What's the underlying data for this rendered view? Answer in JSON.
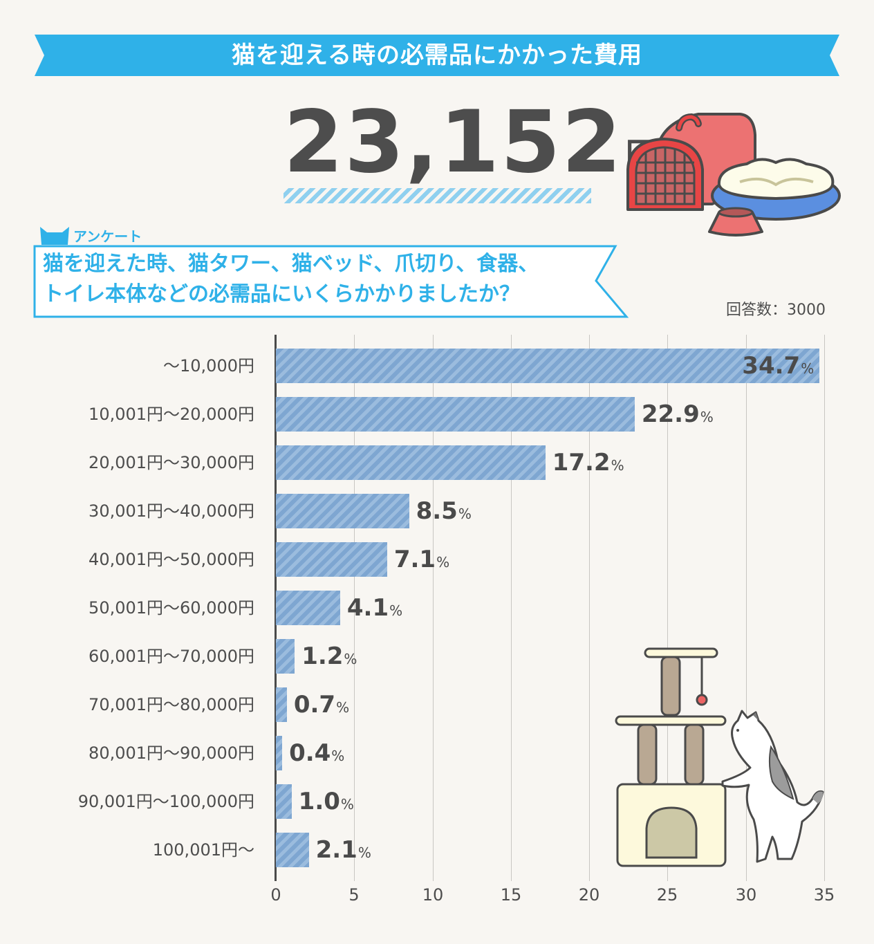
{
  "header": {
    "title": "猫を迎える時の必需品にかかった費用",
    "banner_color": "#2fb1e8"
  },
  "summary": {
    "amount": "23,152",
    "unit": "円"
  },
  "survey": {
    "label": "アンケート",
    "question_line1": "猫を迎えた時、猫タワー、猫ベッド、爪切り、食器、",
    "question_line2": "トイレ本体などの必需品にいくらかかりましたか？",
    "respondents": "回答数：3000"
  },
  "illustrations": {
    "top_right": "pet-carrier-bed-bowl",
    "bottom_right": "cat-tower-with-cat"
  },
  "chart_data": {
    "type": "bar",
    "orientation": "horizontal",
    "title": "猫を迎える時の必需品にかかった費用",
    "xlabel": "",
    "ylabel": "",
    "unit": "%",
    "xlim": [
      0,
      35
    ],
    "xticks": [
      0,
      5,
      10,
      15,
      20,
      25,
      30,
      35
    ],
    "grid": true,
    "bar_color": "#7ea6d1",
    "categories": [
      "～10,000円",
      "10,001円～20,000円",
      "20,001円～30,000円",
      "30,001円～40,000円",
      "40,001円～50,000円",
      "50,001円～60,000円",
      "60,001円～70,000円",
      "70,001円～80,000円",
      "80,001円～90,000円",
      "90,001円～100,000円",
      "100,001円～"
    ],
    "values": [
      34.7,
      22.9,
      17.2,
      8.5,
      7.1,
      4.1,
      1.2,
      0.7,
      0.4,
      1.0,
      2.1
    ],
    "value_labels": [
      "34.7",
      "22.9",
      "17.2",
      "8.5",
      "7.1",
      "4.1",
      "1.2",
      "0.7",
      "0.4",
      "1.0",
      "2.1"
    ],
    "percent_sign": "%"
  }
}
